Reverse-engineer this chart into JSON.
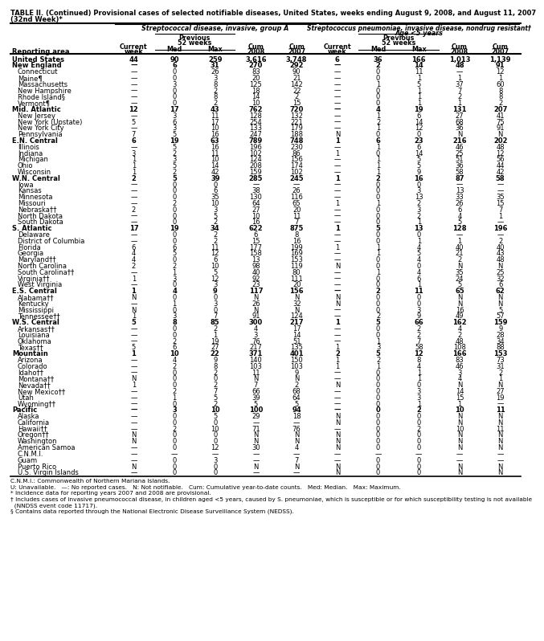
{
  "title_line1": "TABLE II. (Continued) Provisional cases of selected notifiable diseases, United States, weeks ending August 9, 2008, and August 11, 2007",
  "title_line2": "(32nd Week)*",
  "col_group1": "Streptococcal disease, invasive, group A",
  "col_group2_line1": "Streptococcus pneumoniae, invasive disease, nondrug resistant†",
  "col_group2_line2": "Age <5 years",
  "rows": [
    [
      "United States",
      "44",
      "90",
      "259",
      "3,616",
      "3,748",
      "6",
      "36",
      "166",
      "1,013",
      "1,139"
    ],
    [
      "New England",
      "—",
      "6",
      "31",
      "270",
      "292",
      "—",
      "2",
      "14",
      "48",
      "91"
    ],
    [
      "Connecticut",
      "—",
      "0",
      "26",
      "83",
      "90",
      "—",
      "0",
      "11",
      "—",
      "12"
    ],
    [
      "Maine¶",
      "—",
      "0",
      "3",
      "20",
      "21",
      "—",
      "0",
      "1",
      "1",
      "1"
    ],
    [
      "Massachusetts",
      "—",
      "3",
      "8",
      "125",
      "142",
      "—",
      "1",
      "5",
      "37",
      "60"
    ],
    [
      "New Hampshire",
      "—",
      "0",
      "2",
      "18",
      "22",
      "—",
      "0",
      "1",
      "7",
      "8"
    ],
    [
      "Rhode Island§",
      "—",
      "0",
      "8",
      "14",
      "2",
      "—",
      "0",
      "1",
      "2",
      "8"
    ],
    [
      "Vermont¶",
      "—",
      "0",
      "2",
      "10",
      "15",
      "—",
      "0",
      "1",
      "1",
      "2"
    ],
    [
      "Mid. Atlantic",
      "12",
      "17",
      "43",
      "762",
      "720",
      "—",
      "4",
      "19",
      "131",
      "207"
    ],
    [
      "New Jersey",
      "—",
      "3",
      "11",
      "128",
      "132",
      "—",
      "1",
      "6",
      "27",
      "41"
    ],
    [
      "New York (Upstate)",
      "5",
      "6",
      "17",
      "254",
      "221",
      "—",
      "2",
      "14",
      "68",
      "75"
    ],
    [
      "New York City",
      "—",
      "3",
      "10",
      "133",
      "179",
      "—",
      "1",
      "12",
      "36",
      "91"
    ],
    [
      "Pennsylvania",
      "7",
      "5",
      "16",
      "247",
      "188",
      "N",
      "0",
      "0",
      "N",
      "N"
    ],
    [
      "E.N. Central",
      "6",
      "19",
      "63",
      "789",
      "748",
      "1",
      "6",
      "23",
      "216",
      "202"
    ],
    [
      "Illinois",
      "—",
      "5",
      "16",
      "196",
      "230",
      "—",
      "1",
      "6",
      "46",
      "48"
    ],
    [
      "Indiana",
      "3",
      "2",
      "11",
      "102",
      "86",
      "1",
      "0",
      "14",
      "25",
      "12"
    ],
    [
      "Michigan",
      "1",
      "3",
      "10",
      "124",
      "156",
      "—",
      "1",
      "5",
      "51",
      "56"
    ],
    [
      "Ohio",
      "1",
      "5",
      "14",
      "208",
      "174",
      "—",
      "1",
      "5",
      "36",
      "44"
    ],
    [
      "Wisconsin",
      "1",
      "2",
      "42",
      "159",
      "102",
      "—",
      "1",
      "9",
      "58",
      "42"
    ],
    [
      "W.N. Central",
      "2",
      "5",
      "39",
      "285",
      "245",
      "1",
      "2",
      "16",
      "87",
      "58"
    ],
    [
      "Iowa",
      "—",
      "0",
      "0",
      "—",
      "—",
      "—",
      "0",
      "0",
      "—",
      "—"
    ],
    [
      "Kansas",
      "—",
      "0",
      "6",
      "38",
      "26",
      "—",
      "0",
      "3",
      "13",
      "—"
    ],
    [
      "Minnesota",
      "—",
      "0",
      "35",
      "130",
      "116",
      "—",
      "0",
      "13",
      "33",
      "35"
    ],
    [
      "Missouri",
      "—",
      "2",
      "10",
      "64",
      "65",
      "1",
      "1",
      "2",
      "26",
      "15"
    ],
    [
      "Nebraska††",
      "2",
      "0",
      "3",
      "27",
      "20",
      "—",
      "0",
      "3",
      "6",
      "7"
    ],
    [
      "North Dakota",
      "—",
      "0",
      "5",
      "10",
      "11",
      "—",
      "0",
      "2",
      "4",
      "1"
    ],
    [
      "South Dakota",
      "—",
      "0",
      "2",
      "16",
      "7",
      "—",
      "0",
      "1",
      "5",
      "—"
    ],
    [
      "S. Atlantic",
      "17",
      "19",
      "34",
      "622",
      "875",
      "1",
      "5",
      "13",
      "128",
      "196"
    ],
    [
      "Delaware",
      "—",
      "0",
      "2",
      "6",
      "8",
      "—",
      "0",
      "0",
      "—",
      "—"
    ],
    [
      "District of Columbia",
      "—",
      "0",
      "2",
      "15",
      "16",
      "—",
      "0",
      "1",
      "1",
      "2"
    ],
    [
      "Florida",
      "6",
      "6",
      "11",
      "177",
      "199",
      "1",
      "1",
      "4",
      "40",
      "40"
    ],
    [
      "Georgia",
      "4",
      "5",
      "12",
      "158",
      "169",
      "—",
      "1",
      "5",
      "21",
      "43"
    ],
    [
      "Maryland††",
      "4",
      "0",
      "6",
      "13",
      "153",
      "—",
      "0",
      "4",
      "2",
      "48"
    ],
    [
      "North Carolina",
      "2",
      "2",
      "10",
      "98",
      "119",
      "N",
      "0",
      "0",
      "N",
      "N"
    ],
    [
      "South Carolina††",
      "—",
      "1",
      "5",
      "40",
      "80",
      "—",
      "1",
      "4",
      "35",
      "25"
    ],
    [
      "Virginia††",
      "1",
      "3",
      "12",
      "92",
      "111",
      "—",
      "0",
      "6",
      "24",
      "32"
    ],
    [
      "West Virginia",
      "—",
      "0",
      "3",
      "23",
      "20",
      "—",
      "0",
      "1",
      "5",
      "6"
    ],
    [
      "E.S. Central",
      "1",
      "4",
      "9",
      "117",
      "156",
      "—",
      "2",
      "11",
      "65",
      "62"
    ],
    [
      "Alabama††",
      "N",
      "0",
      "0",
      "N",
      "N",
      "N",
      "0",
      "0",
      "N",
      "N"
    ],
    [
      "Kentucky",
      "—",
      "1",
      "3",
      "26",
      "32",
      "N",
      "0",
      "0",
      "N",
      "N"
    ],
    [
      "Mississippi",
      "N",
      "0",
      "0",
      "N",
      "N",
      "—",
      "0",
      "3",
      "16",
      "5"
    ],
    [
      "Tennessee††",
      "1",
      "3",
      "7",
      "91",
      "124",
      "—",
      "2",
      "9",
      "49",
      "57"
    ],
    [
      "W.S. Central",
      "5",
      "8",
      "85",
      "300",
      "217",
      "1",
      "5",
      "66",
      "162",
      "159"
    ],
    [
      "Arkansas††",
      "—",
      "0",
      "2",
      "4",
      "17",
      "—",
      "0",
      "2",
      "4",
      "9"
    ],
    [
      "Louisiana",
      "—",
      "0",
      "1",
      "3",
      "14",
      "—",
      "0",
      "2",
      "2",
      "28"
    ],
    [
      "Oklahoma",
      "—",
      "2",
      "19",
      "76",
      "51",
      "—",
      "1",
      "7",
      "48",
      "34"
    ],
    [
      "Texas††",
      "5",
      "6",
      "27",
      "217",
      "135",
      "1",
      "3",
      "58",
      "108",
      "88"
    ],
    [
      "Mountain",
      "1",
      "10",
      "22",
      "371",
      "401",
      "2",
      "5",
      "12",
      "166",
      "153"
    ],
    [
      "Arizona",
      "—",
      "4",
      "9",
      "140",
      "150",
      "1",
      "2",
      "8",
      "83",
      "73"
    ],
    [
      "Colorado",
      "—",
      "2",
      "8",
      "103",
      "103",
      "1",
      "1",
      "4",
      "46",
      "31"
    ],
    [
      "Idaho††",
      "—",
      "0",
      "2",
      "11",
      "9",
      "—",
      "0",
      "1",
      "3",
      "2"
    ],
    [
      "Montana††",
      "N",
      "0",
      "0",
      "N",
      "N",
      "—",
      "0",
      "1",
      "4",
      "1"
    ],
    [
      "Nevada††",
      "1",
      "0",
      "2",
      "7",
      "2",
      "N",
      "0",
      "0",
      "N",
      "N"
    ],
    [
      "New Mexico††",
      "—",
      "2",
      "7",
      "66",
      "68",
      "—",
      "0",
      "3",
      "14",
      "27"
    ],
    [
      "Utah",
      "—",
      "1",
      "5",
      "39",
      "64",
      "—",
      "0",
      "3",
      "15",
      "19"
    ],
    [
      "Wyoming††",
      "—",
      "0",
      "2",
      "5",
      "5",
      "—",
      "0",
      "1",
      "1",
      "—"
    ],
    [
      "Pacific",
      "—",
      "3",
      "10",
      "100",
      "94",
      "—",
      "0",
      "2",
      "10",
      "11"
    ],
    [
      "Alaska",
      "—",
      "0",
      "5",
      "29",
      "18",
      "N",
      "0",
      "0",
      "N",
      "N"
    ],
    [
      "California",
      "—",
      "0",
      "0",
      "—",
      "—",
      "N",
      "0",
      "0",
      "N",
      "N"
    ],
    [
      "Hawaii††",
      "—",
      "2",
      "10",
      "71",
      "76",
      "—",
      "0",
      "2",
      "10",
      "11"
    ],
    [
      "Oregon††",
      "N",
      "0",
      "0",
      "N",
      "N",
      "N",
      "0",
      "0",
      "N",
      "N"
    ],
    [
      "Washington",
      "N",
      "0",
      "0",
      "N",
      "N",
      "N",
      "0",
      "0",
      "N",
      "N"
    ],
    [
      "American Samoa",
      "—",
      "0",
      "12",
      "30",
      "4",
      "N",
      "0",
      "0",
      "N",
      "N"
    ],
    [
      "C.N.M.I.",
      "—",
      "—",
      "—",
      "—",
      "—",
      "—",
      "—",
      "—",
      "—",
      "—"
    ],
    [
      "Guam",
      "—",
      "0",
      "3",
      "—",
      "7",
      "—",
      "0",
      "0",
      "—",
      "—"
    ],
    [
      "Puerto Rico",
      "N",
      "0",
      "0",
      "N",
      "N",
      "N",
      "0",
      "0",
      "N",
      "N"
    ],
    [
      "U.S. Virgin Islands",
      "—",
      "0",
      "0",
      "—",
      "—",
      "N",
      "0",
      "0",
      "N",
      "N"
    ]
  ],
  "bold_rows": [
    0,
    1,
    8,
    13,
    19,
    27,
    37,
    42,
    47,
    56
  ],
  "footnotes": [
    "C.N.M.I.: Commonwealth of Northern Mariana Islands.",
    "U: Unavailable.   —: No reported cases.   N: Not notifiable.   Cum: Cumulative year-to-date counts.   Med: Median.   Max: Maximum.",
    "* Incidence data for reporting years 2007 and 2008 are provisional.",
    "† Includes cases of invasive pneumococcal disease, in children aged <5 years, caused by S. pneumoniae, which is susceptible or for which susceptibility testing is not available",
    "  (NNDSS event code 11717).",
    "§ Contains data reported through the National Electronic Disease Surveillance System (NEDSS)."
  ]
}
